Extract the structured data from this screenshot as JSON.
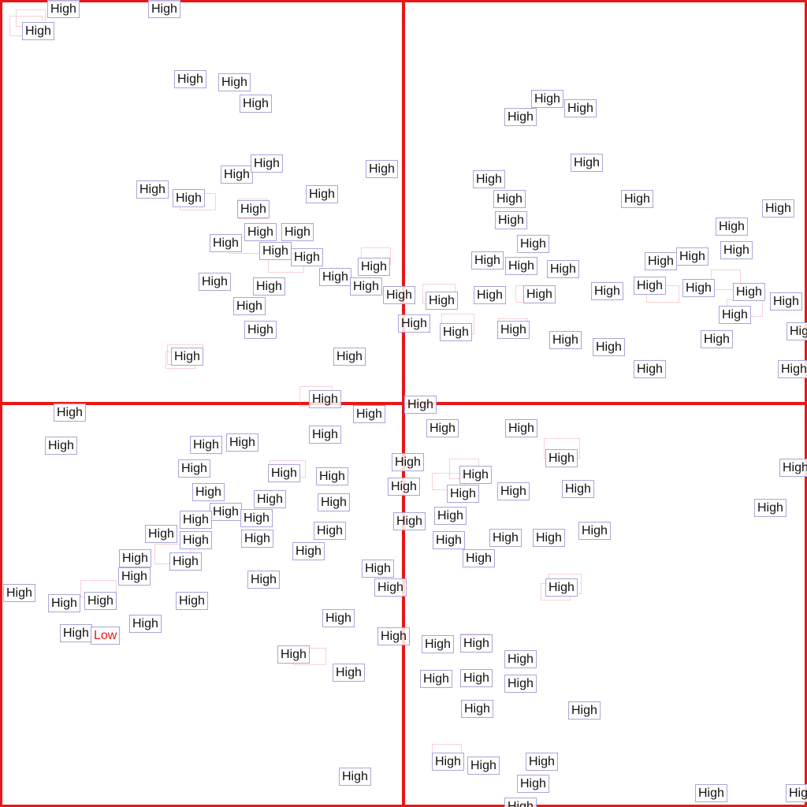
{
  "grid": {
    "line_color": "#e81717",
    "label_border_color": "#a9a6da",
    "high_color": "#111111",
    "low_color": "#e81717"
  },
  "labels": {
    "high": "High",
    "low": "Low"
  }
}
